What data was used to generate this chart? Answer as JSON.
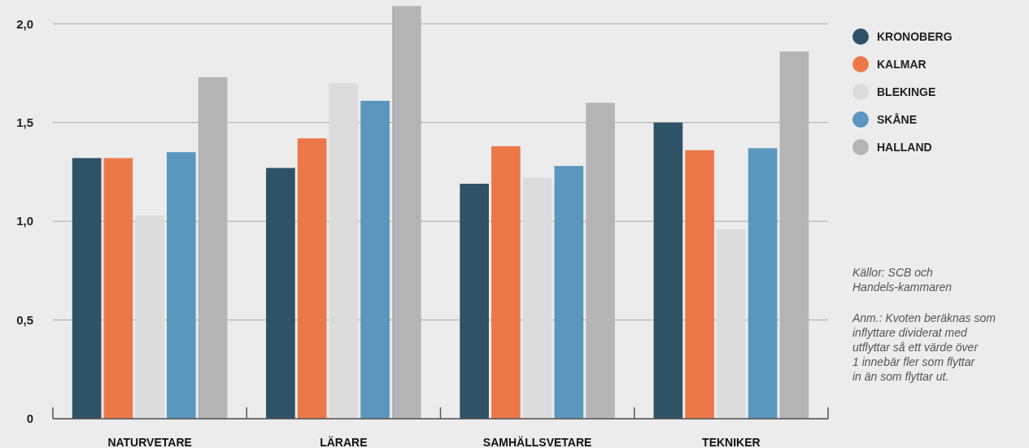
{
  "chart_data": {
    "type": "bar",
    "categories": [
      "NATURVETARE",
      "LÄRARE",
      "SAMHÄLLSVETARE",
      "TEKNIKER"
    ],
    "series": [
      {
        "name": "KRONOBERG",
        "color": "#2e5266",
        "values": [
          1.32,
          1.27,
          1.19,
          1.5
        ]
      },
      {
        "name": "KALMAR",
        "color": "#ec784a",
        "values": [
          1.32,
          1.42,
          1.38,
          1.36
        ]
      },
      {
        "name": "BLEKINGE",
        "color": "#dcdcdc",
        "values": [
          1.03,
          1.7,
          1.22,
          0.96
        ]
      },
      {
        "name": "SKÅNE",
        "color": "#5b96be",
        "values": [
          1.35,
          1.61,
          1.28,
          1.37
        ]
      },
      {
        "name": "HALLAND",
        "color": "#b4b4b4",
        "values": [
          1.73,
          2.09,
          1.6,
          1.86
        ]
      }
    ],
    "ylim": [
      0,
      2.1
    ],
    "yticks": [
      {
        "value": 0,
        "label": "0"
      },
      {
        "value": 0.5,
        "label": "0,5"
      },
      {
        "value": 1,
        "label": "1,0"
      },
      {
        "value": 1.5,
        "label": "1,5"
      },
      {
        "value": 2,
        "label": "2,0"
      }
    ],
    "grid": "y",
    "legend": "right",
    "annotations": [
      "Källor: SCB och Handels-kammaren",
      "Anm.: Kvoten beräknas som inflyttare dividerat med utflyttar så ett värde över 1 innebär fler som flyttar in än som flyttar ut."
    ]
  }
}
